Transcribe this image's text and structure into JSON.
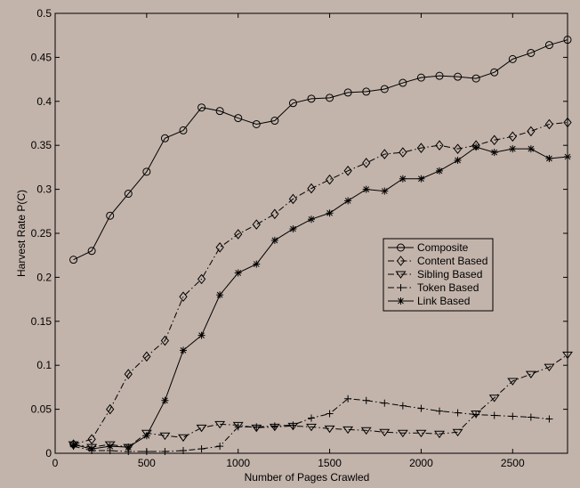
{
  "chart_data": {
    "type": "line",
    "title": "",
    "xlabel": "Number of Pages Crawled",
    "ylabel": "Harvest Rate P(C)",
    "xlim": [
      0,
      2800
    ],
    "ylim": [
      0,
      0.5
    ],
    "xticks": [
      0,
      500,
      1000,
      1500,
      2000,
      2500
    ],
    "xtick_labels": [
      "0",
      "500",
      "1000",
      "1500",
      "2000",
      "2500"
    ],
    "yticks": [
      0,
      0.05,
      0.1,
      0.15,
      0.2,
      0.25,
      0.3,
      0.35,
      0.4,
      0.45,
      0.5
    ],
    "ytick_labels": [
      "0",
      "0.05",
      "0.1",
      "0.15",
      "0.2",
      "0.25",
      "0.3",
      "0.35",
      "0.4",
      "0.45",
      "0.5"
    ],
    "grid": false,
    "legend_position": "right-middle",
    "x": [
      100,
      200,
      300,
      400,
      500,
      600,
      700,
      800,
      900,
      1000,
      1100,
      1200,
      1300,
      1400,
      1500,
      1600,
      1700,
      1800,
      1900,
      2000,
      2100,
      2200,
      2300,
      2400,
      2500,
      2600,
      2700,
      2800
    ],
    "series": [
      {
        "name": "Composite",
        "marker": "circle",
        "dash": "solid",
        "values": [
          0.22,
          0.23,
          0.27,
          0.295,
          0.32,
          0.358,
          0.367,
          0.393,
          0.389,
          0.381,
          0.374,
          0.378,
          0.398,
          0.403,
          0.404,
          0.41,
          0.411,
          0.414,
          0.421,
          0.427,
          0.429,
          0.428,
          0.426,
          0.433,
          0.448,
          0.455,
          0.464,
          0.47
        ]
      },
      {
        "name": "Content Based",
        "marker": "diamond",
        "dash": "dashdot",
        "values": [
          0.01,
          0.016,
          0.05,
          0.09,
          0.11,
          0.128,
          0.178,
          0.198,
          0.234,
          0.249,
          0.26,
          0.272,
          0.289,
          0.301,
          0.311,
          0.321,
          0.33,
          0.34,
          0.342,
          0.347,
          0.35,
          0.346,
          0.35,
          0.356,
          0.36,
          0.366,
          0.374,
          0.376
        ]
      },
      {
        "name": "Sibling Based",
        "marker": "triangle-down",
        "dash": "dashdot",
        "values": [
          0.01,
          0.007,
          0.01,
          0.007,
          0.023,
          0.02,
          0.018,
          0.029,
          0.033,
          0.032,
          0.029,
          0.03,
          0.031,
          0.03,
          0.028,
          0.027,
          0.026,
          0.024,
          0.023,
          0.023,
          0.022,
          0.024,
          0.045,
          0.063,
          0.082,
          0.09,
          0.098,
          0.112
        ]
      },
      {
        "name": "Token Based",
        "marker": "plus",
        "dash": "dashdot",
        "values": [
          0.008,
          0.003,
          0.003,
          0.002,
          0.002,
          0.002,
          0.003,
          0.005,
          0.008,
          0.03,
          0.03,
          0.031,
          0.032,
          0.04,
          0.045,
          0.062,
          0.06,
          0.057,
          0.054,
          0.051,
          0.048,
          0.046,
          0.044,
          0.043,
          0.042,
          0.041,
          0.039,
          null
        ]
      },
      {
        "name": "Link Based",
        "marker": "asterisk",
        "dash": "solid",
        "values": [
          0.01,
          0.005,
          0.008,
          0.007,
          0.02,
          0.06,
          0.117,
          0.134,
          0.18,
          0.205,
          0.215,
          0.242,
          0.255,
          0.266,
          0.273,
          0.287,
          0.3,
          0.298,
          0.312,
          0.312,
          0.321,
          0.333,
          0.348,
          0.342,
          0.346,
          0.346,
          0.335,
          0.337
        ]
      }
    ]
  }
}
